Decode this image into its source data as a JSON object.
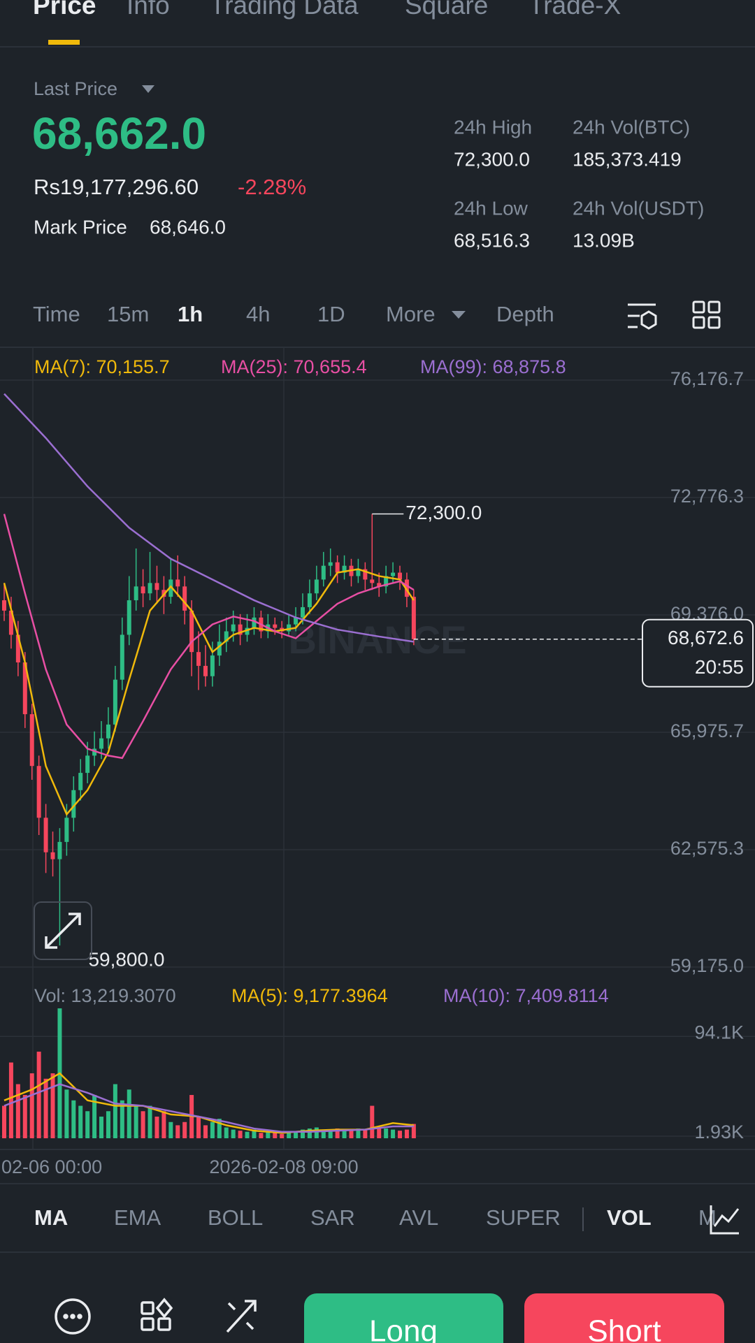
{
  "tabs": [
    "Price",
    "Info",
    "Trading Data",
    "Square",
    "Trade-X"
  ],
  "ticker": {
    "last_price_label": "Last Price",
    "last_price": "68,662.0",
    "fiat_price": "Rs19,177,296.60",
    "change": "-2.28%",
    "mark_price_label": "Mark Price",
    "mark_price": "68,646.0"
  },
  "stats": [
    {
      "label": "24h High",
      "value": "72,300.0"
    },
    {
      "label": "24h Vol(BTC)",
      "value": "185,373.419"
    },
    {
      "label": "24h Low",
      "value": "68,516.3"
    },
    {
      "label": "24h Vol(USDT)",
      "value": "13.09B"
    }
  ],
  "intervals": [
    "Time",
    "15m",
    "1h",
    "4h",
    "1D",
    "More",
    "Depth"
  ],
  "chart": {
    "type": "candlestick",
    "watermark": "BINANCE",
    "ylim": [
      59175.0,
      76176.7
    ],
    "yticks": [
      {
        "value": 76176.7,
        "label": "76,176.7"
      },
      {
        "value": 72776.3,
        "label": "72,776.3"
      },
      {
        "value": 69376.0,
        "label": "69,376.0"
      },
      {
        "value": 65975.7,
        "label": "65,975.7"
      },
      {
        "value": 62575.3,
        "label": "62,575.3"
      },
      {
        "value": 59175.0,
        "label": "59,175.0"
      }
    ],
    "up_color": "#2ebd85",
    "down_color": "#f6465d",
    "candles": [
      [
        69800,
        70300,
        69200,
        69500
      ],
      [
        69500,
        69900,
        68400,
        68800
      ],
      [
        68800,
        69200,
        67600,
        68000
      ],
      [
        68000,
        68300,
        66100,
        66500
      ],
      [
        66500,
        66800,
        64600,
        65000
      ],
      [
        65000,
        65300,
        63000,
        63500
      ],
      [
        63500,
        63900,
        61900,
        62500
      ],
      [
        62500,
        63100,
        61800,
        62300
      ],
      [
        62300,
        63200,
        59800,
        62800
      ],
      [
        62800,
        63900,
        62400,
        63500
      ],
      [
        63500,
        64700,
        63100,
        64300
      ],
      [
        64300,
        65200,
        64000,
        64800
      ],
      [
        64800,
        65700,
        64500,
        65300
      ],
      [
        65300,
        66000,
        65000,
        65500
      ],
      [
        65500,
        66300,
        65200,
        65800
      ],
      [
        65800,
        66700,
        65500,
        66200
      ],
      [
        66200,
        67900,
        66000,
        67500
      ],
      [
        67500,
        69300,
        67200,
        68800
      ],
      [
        68800,
        70500,
        68500,
        69800
      ],
      [
        69800,
        71300,
        69500,
        70200
      ],
      [
        70200,
        70700,
        69600,
        70000
      ],
      [
        70000,
        71200,
        69800,
        70300
      ],
      [
        70300,
        70800,
        69700,
        70100
      ],
      [
        70100,
        70500,
        69400,
        69900
      ],
      [
        69900,
        71000,
        69700,
        70400
      ],
      [
        70400,
        71100,
        69900,
        70200
      ],
      [
        70200,
        70500,
        69100,
        69500
      ],
      [
        69500,
        69800,
        67600,
        68300
      ],
      [
        68300,
        68900,
        67200,
        67900
      ],
      [
        67900,
        68500,
        67300,
        67600
      ],
      [
        67600,
        68600,
        67300,
        68200
      ],
      [
        68200,
        69100,
        67900,
        68600
      ],
      [
        68600,
        69300,
        68300,
        68900
      ],
      [
        68900,
        69500,
        68600,
        69100
      ],
      [
        69100,
        69400,
        68500,
        68800
      ],
      [
        68800,
        69400,
        68600,
        69000
      ],
      [
        69000,
        69600,
        68800,
        69300
      ],
      [
        69300,
        69500,
        68700,
        68900
      ],
      [
        68900,
        69400,
        68700,
        69100
      ],
      [
        69100,
        69300,
        68800,
        69000
      ],
      [
        69000,
        69200,
        68700,
        68900
      ],
      [
        68900,
        69400,
        68800,
        69100
      ],
      [
        69100,
        69600,
        68900,
        69300
      ],
      [
        69300,
        70000,
        69100,
        69600
      ],
      [
        69600,
        70400,
        69400,
        70000
      ],
      [
        70000,
        70800,
        69800,
        70400
      ],
      [
        70400,
        71200,
        70200,
        70800
      ],
      [
        70800,
        71300,
        70500,
        70900
      ],
      [
        70900,
        71100,
        70300,
        70600
      ],
      [
        70600,
        71100,
        70400,
        70800
      ],
      [
        70800,
        71000,
        70200,
        70500
      ],
      [
        70500,
        71000,
        70300,
        70700
      ],
      [
        70700,
        70900,
        70100,
        70400
      ],
      [
        70400,
        72300,
        70100,
        70300
      ],
      [
        70300,
        70600,
        69900,
        70200
      ],
      [
        70200,
        70800,
        70000,
        70500
      ],
      [
        70500,
        70900,
        70300,
        70600
      ],
      [
        70600,
        70800,
        70100,
        70400
      ],
      [
        70400,
        70600,
        69600,
        69900
      ],
      [
        69900,
        70100,
        68500,
        68672.6
      ]
    ],
    "series": [
      {
        "name": "MA(7): 70,155.7",
        "color": "#f0b90b",
        "x": [
          0,
          3,
          6,
          9,
          12,
          15,
          18,
          21,
          24,
          27,
          30,
          33,
          36,
          39,
          42,
          45,
          48,
          51,
          54,
          57,
          59
        ],
        "values": [
          70300,
          68000,
          65000,
          63600,
          64300,
          65400,
          67500,
          69500,
          70200,
          69500,
          68300,
          68800,
          69000,
          68900,
          69000,
          69700,
          70600,
          70700,
          70500,
          70400,
          69800
        ]
      },
      {
        "name": "MA(25): 70,655.4",
        "color": "#e84fa4",
        "x": [
          0,
          3,
          6,
          9,
          12,
          15,
          17,
          20,
          24,
          27,
          30,
          33,
          36,
          39,
          42,
          45,
          48,
          51,
          54,
          57,
          59
        ],
        "values": [
          72300,
          70000,
          67800,
          66200,
          65500,
          65300,
          65230,
          66300,
          67800,
          68600,
          69100,
          69330,
          69200,
          68900,
          68700,
          69200,
          69700,
          70000,
          70200,
          70350,
          70100
        ]
      },
      {
        "name": "MA(99): 68,875.8",
        "color": "#9b6fd1",
        "x": [
          0,
          6,
          12,
          18,
          24,
          30,
          36,
          42,
          48,
          54,
          59
        ],
        "values": [
          75780,
          74500,
          73100,
          71900,
          71000,
          70400,
          69800,
          69300,
          68950,
          68750,
          68600
        ]
      }
    ],
    "high_label": {
      "value": 72300.0,
      "label": "72,300.0"
    },
    "low_label": {
      "value": 59800.0,
      "label": "59,800.0"
    },
    "current": {
      "value": 68672.6,
      "label": "68,672.6",
      "countdown": "20:55"
    },
    "time_labels": [
      "02-06 00:00",
      "2026-02-08 09:00"
    ]
  },
  "volume": {
    "label": "Vol: 13,219.3070",
    "ylim": [
      0,
      122000
    ],
    "yticks": [
      {
        "value": 94100,
        "label": "94.1K"
      },
      {
        "value": 1930,
        "label": "1.93K"
      }
    ],
    "values": [
      30000,
      70000,
      50000,
      40000,
      60000,
      80000,
      55000,
      60000,
      120000,
      45000,
      35000,
      30000,
      25000,
      40000,
      20000,
      25000,
      50000,
      35000,
      45000,
      30000,
      25000,
      30000,
      20000,
      25000,
      15000,
      12000,
      15000,
      40000,
      20000,
      12000,
      15000,
      18000,
      10000,
      8000,
      7000,
      6000,
      8000,
      5000,
      6000,
      5000,
      4000,
      5000,
      6000,
      8000,
      9000,
      10000,
      8000,
      7000,
      9000,
      8000,
      7000,
      9000,
      8000,
      30000,
      10000,
      9000,
      8000,
      7000,
      8000,
      13219.307
    ],
    "series": [
      {
        "name": "MA(5): 9,177.3964",
        "color": "#f0b90b",
        "x": [
          0,
          4,
          8,
          12,
          16,
          20,
          24,
          28,
          32,
          36,
          40,
          44,
          48,
          52,
          56,
          59
        ],
        "values": [
          35000,
          45000,
          60000,
          35000,
          30000,
          30000,
          22000,
          20000,
          12000,
          7000,
          5000,
          7000,
          8000,
          8000,
          14000,
          12000
        ]
      },
      {
        "name": "MA(10): 7,409.8114",
        "color": "#9b6fd1",
        "x": [
          0,
          4,
          8,
          12,
          16,
          20,
          24,
          28,
          32,
          36,
          40,
          44,
          48,
          52,
          56,
          59
        ],
        "values": [
          30000,
          40000,
          50000,
          42000,
          32000,
          30000,
          25000,
          20000,
          15000,
          9000,
          6000,
          6000,
          7000,
          8000,
          11000,
          11000
        ]
      }
    ]
  },
  "indicators": [
    "MA",
    "EMA",
    "BOLL",
    "SAR",
    "AVL",
    "SUPER",
    "VOL",
    "M"
  ],
  "buttons": [
    "Long",
    "Short"
  ]
}
